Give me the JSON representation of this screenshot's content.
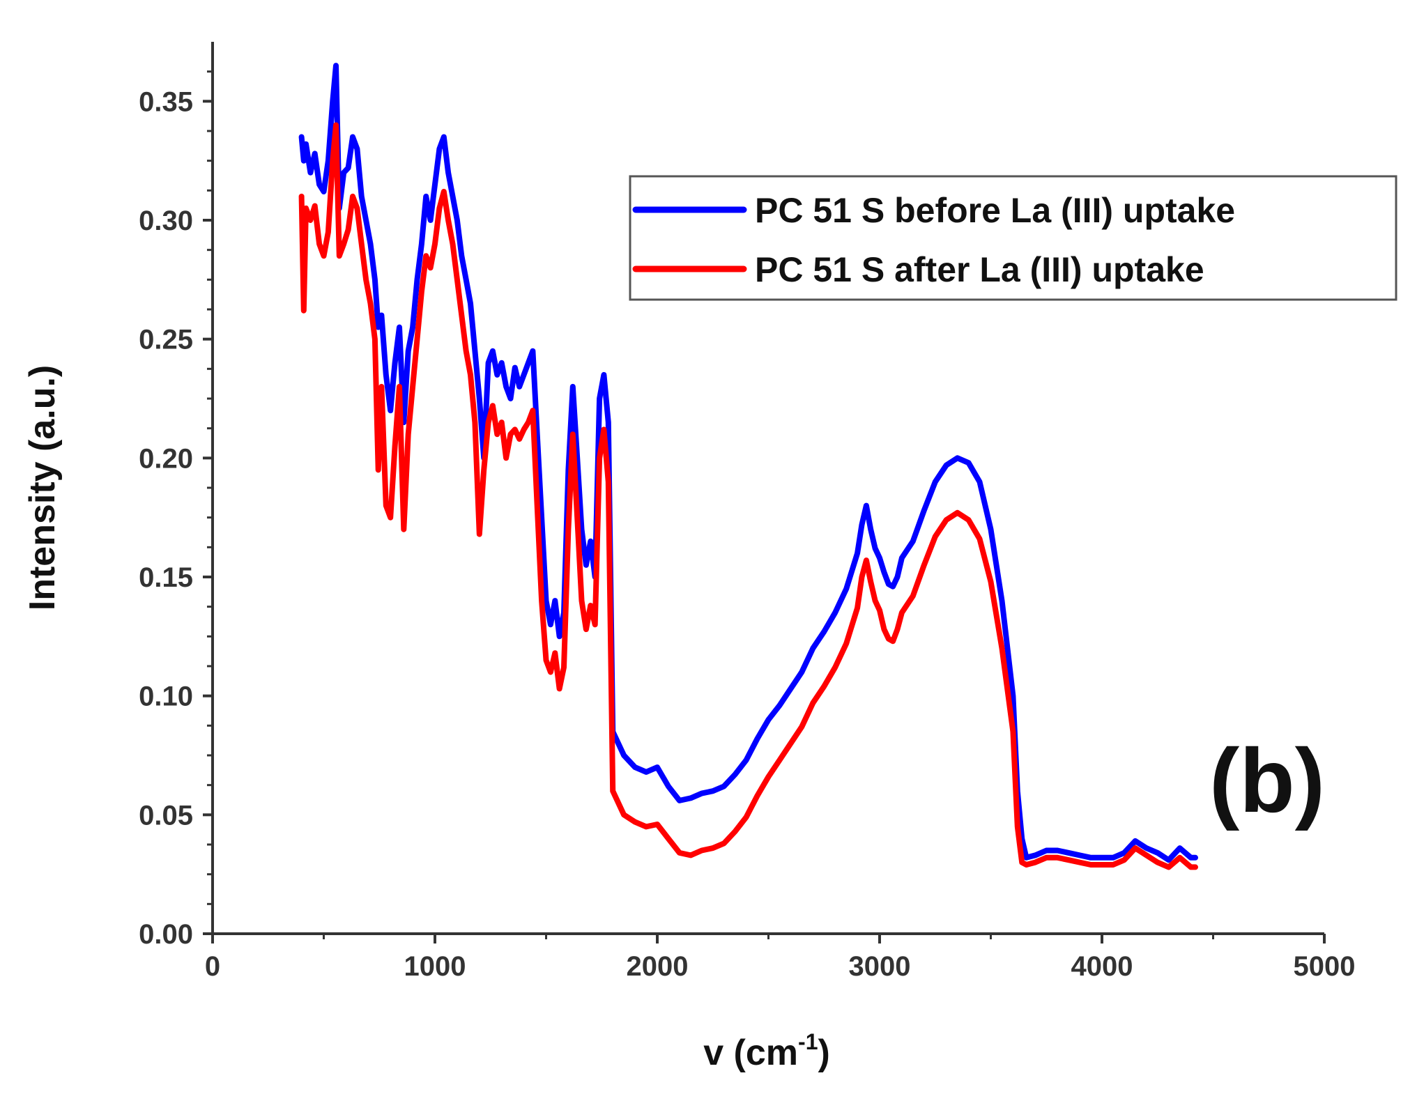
{
  "chart_data": {
    "type": "line",
    "title": "",
    "panel_label": "(b)",
    "xlabel": "v (cm",
    "xlabel_sup": "-1",
    "xlabel_close": ")",
    "ylabel": "Intensity (a.u.)",
    "xlim": [
      0,
      5000
    ],
    "ylim": [
      0,
      0.375
    ],
    "x_ticks": [
      0,
      1000,
      2000,
      3000,
      4000,
      5000
    ],
    "x_tick_labels": [
      "0",
      "1000",
      "2000",
      "3000",
      "4000",
      "5000"
    ],
    "y_ticks": [
      0.0,
      0.05,
      0.1,
      0.15,
      0.2,
      0.25,
      0.3,
      0.35
    ],
    "y_tick_labels": [
      "0.00",
      "0.05",
      "0.10",
      "0.15",
      "0.20",
      "0.25",
      "0.30",
      "0.35"
    ],
    "grid": false,
    "legend_position": "top-right",
    "series": [
      {
        "name": "PC 51 S before La (III) uptake",
        "color": "#0000ff",
        "x": [
          400,
          410,
          420,
          440,
          460,
          480,
          500,
          520,
          540,
          555,
          570,
          590,
          610,
          630,
          650,
          670,
          690,
          710,
          730,
          745,
          760,
          780,
          800,
          820,
          840,
          860,
          880,
          900,
          920,
          940,
          960,
          980,
          1000,
          1020,
          1040,
          1060,
          1080,
          1100,
          1120,
          1140,
          1160,
          1180,
          1200,
          1220,
          1240,
          1260,
          1280,
          1300,
          1320,
          1340,
          1360,
          1380,
          1400,
          1420,
          1440,
          1460,
          1480,
          1500,
          1520,
          1540,
          1560,
          1580,
          1600,
          1620,
          1640,
          1660,
          1680,
          1700,
          1720,
          1740,
          1760,
          1780,
          1800,
          1850,
          1900,
          1950,
          2000,
          2050,
          2100,
          2150,
          2200,
          2250,
          2300,
          2350,
          2400,
          2450,
          2500,
          2550,
          2600,
          2650,
          2700,
          2750,
          2800,
          2850,
          2900,
          2920,
          2940,
          2960,
          2980,
          3000,
          3020,
          3040,
          3060,
          3080,
          3100,
          3150,
          3200,
          3250,
          3300,
          3350,
          3400,
          3450,
          3500,
          3550,
          3600,
          3620,
          3640,
          3660,
          3700,
          3750,
          3800,
          3850,
          3900,
          3950,
          4000,
          4050,
          4100,
          4150,
          4200,
          4250,
          4300,
          4350,
          4400,
          4420
        ],
        "y": [
          0.335,
          0.325,
          0.332,
          0.32,
          0.328,
          0.315,
          0.312,
          0.325,
          0.35,
          0.365,
          0.305,
          0.32,
          0.322,
          0.335,
          0.33,
          0.31,
          0.3,
          0.29,
          0.275,
          0.255,
          0.26,
          0.235,
          0.22,
          0.24,
          0.255,
          0.215,
          0.245,
          0.255,
          0.275,
          0.29,
          0.31,
          0.3,
          0.315,
          0.33,
          0.335,
          0.32,
          0.31,
          0.3,
          0.285,
          0.275,
          0.265,
          0.245,
          0.225,
          0.2,
          0.24,
          0.245,
          0.235,
          0.24,
          0.23,
          0.225,
          0.238,
          0.23,
          0.235,
          0.24,
          0.245,
          0.21,
          0.175,
          0.14,
          0.13,
          0.14,
          0.125,
          0.135,
          0.195,
          0.23,
          0.2,
          0.17,
          0.155,
          0.165,
          0.15,
          0.225,
          0.235,
          0.215,
          0.085,
          0.075,
          0.07,
          0.068,
          0.07,
          0.062,
          0.056,
          0.057,
          0.059,
          0.06,
          0.062,
          0.067,
          0.073,
          0.082,
          0.09,
          0.096,
          0.103,
          0.11,
          0.12,
          0.127,
          0.135,
          0.145,
          0.16,
          0.172,
          0.18,
          0.17,
          0.162,
          0.158,
          0.152,
          0.147,
          0.146,
          0.15,
          0.158,
          0.165,
          0.178,
          0.19,
          0.197,
          0.2,
          0.198,
          0.19,
          0.17,
          0.14,
          0.1,
          0.06,
          0.04,
          0.032,
          0.033,
          0.035,
          0.035,
          0.034,
          0.033,
          0.032,
          0.032,
          0.032,
          0.034,
          0.039,
          0.036,
          0.034,
          0.031,
          0.036,
          0.032,
          0.032
        ]
      },
      {
        "name": "PC 51 S after La (III) uptake",
        "color": "#ff0000",
        "x": [
          400,
          410,
          420,
          440,
          460,
          480,
          500,
          520,
          540,
          555,
          570,
          590,
          610,
          630,
          650,
          670,
          690,
          710,
          730,
          745,
          760,
          780,
          800,
          820,
          840,
          860,
          880,
          900,
          920,
          940,
          960,
          980,
          1000,
          1020,
          1040,
          1060,
          1080,
          1100,
          1120,
          1140,
          1160,
          1180,
          1200,
          1220,
          1240,
          1260,
          1280,
          1300,
          1320,
          1340,
          1360,
          1380,
          1400,
          1420,
          1440,
          1460,
          1480,
          1500,
          1520,
          1540,
          1560,
          1580,
          1600,
          1620,
          1640,
          1660,
          1680,
          1700,
          1720,
          1740,
          1760,
          1780,
          1800,
          1850,
          1900,
          1950,
          2000,
          2050,
          2100,
          2150,
          2200,
          2250,
          2300,
          2350,
          2400,
          2450,
          2500,
          2550,
          2600,
          2650,
          2700,
          2750,
          2800,
          2850,
          2900,
          2920,
          2940,
          2960,
          2980,
          3000,
          3020,
          3040,
          3060,
          3080,
          3100,
          3150,
          3200,
          3250,
          3300,
          3350,
          3400,
          3450,
          3500,
          3550,
          3600,
          3620,
          3640,
          3660,
          3700,
          3750,
          3800,
          3850,
          3900,
          3950,
          4000,
          4050,
          4100,
          4150,
          4200,
          4250,
          4300,
          4350,
          4400,
          4420
        ],
        "y": [
          0.31,
          0.262,
          0.305,
          0.3,
          0.306,
          0.29,
          0.285,
          0.295,
          0.325,
          0.34,
          0.285,
          0.29,
          0.296,
          0.31,
          0.305,
          0.29,
          0.275,
          0.265,
          0.25,
          0.195,
          0.23,
          0.18,
          0.175,
          0.205,
          0.23,
          0.17,
          0.21,
          0.23,
          0.25,
          0.27,
          0.285,
          0.28,
          0.29,
          0.305,
          0.312,
          0.3,
          0.29,
          0.275,
          0.26,
          0.245,
          0.235,
          0.215,
          0.168,
          0.195,
          0.215,
          0.222,
          0.21,
          0.215,
          0.2,
          0.21,
          0.212,
          0.208,
          0.212,
          0.215,
          0.22,
          0.18,
          0.14,
          0.115,
          0.11,
          0.118,
          0.103,
          0.112,
          0.17,
          0.21,
          0.175,
          0.14,
          0.128,
          0.138,
          0.13,
          0.2,
          0.212,
          0.19,
          0.06,
          0.05,
          0.047,
          0.045,
          0.046,
          0.04,
          0.034,
          0.033,
          0.035,
          0.036,
          0.038,
          0.043,
          0.049,
          0.058,
          0.066,
          0.073,
          0.08,
          0.087,
          0.097,
          0.104,
          0.112,
          0.122,
          0.137,
          0.15,
          0.157,
          0.148,
          0.14,
          0.136,
          0.128,
          0.124,
          0.123,
          0.128,
          0.135,
          0.142,
          0.155,
          0.167,
          0.174,
          0.177,
          0.174,
          0.166,
          0.148,
          0.12,
          0.085,
          0.045,
          0.03,
          0.029,
          0.03,
          0.032,
          0.032,
          0.031,
          0.03,
          0.029,
          0.029,
          0.029,
          0.031,
          0.036,
          0.033,
          0.03,
          0.028,
          0.032,
          0.028,
          0.028
        ]
      }
    ]
  }
}
